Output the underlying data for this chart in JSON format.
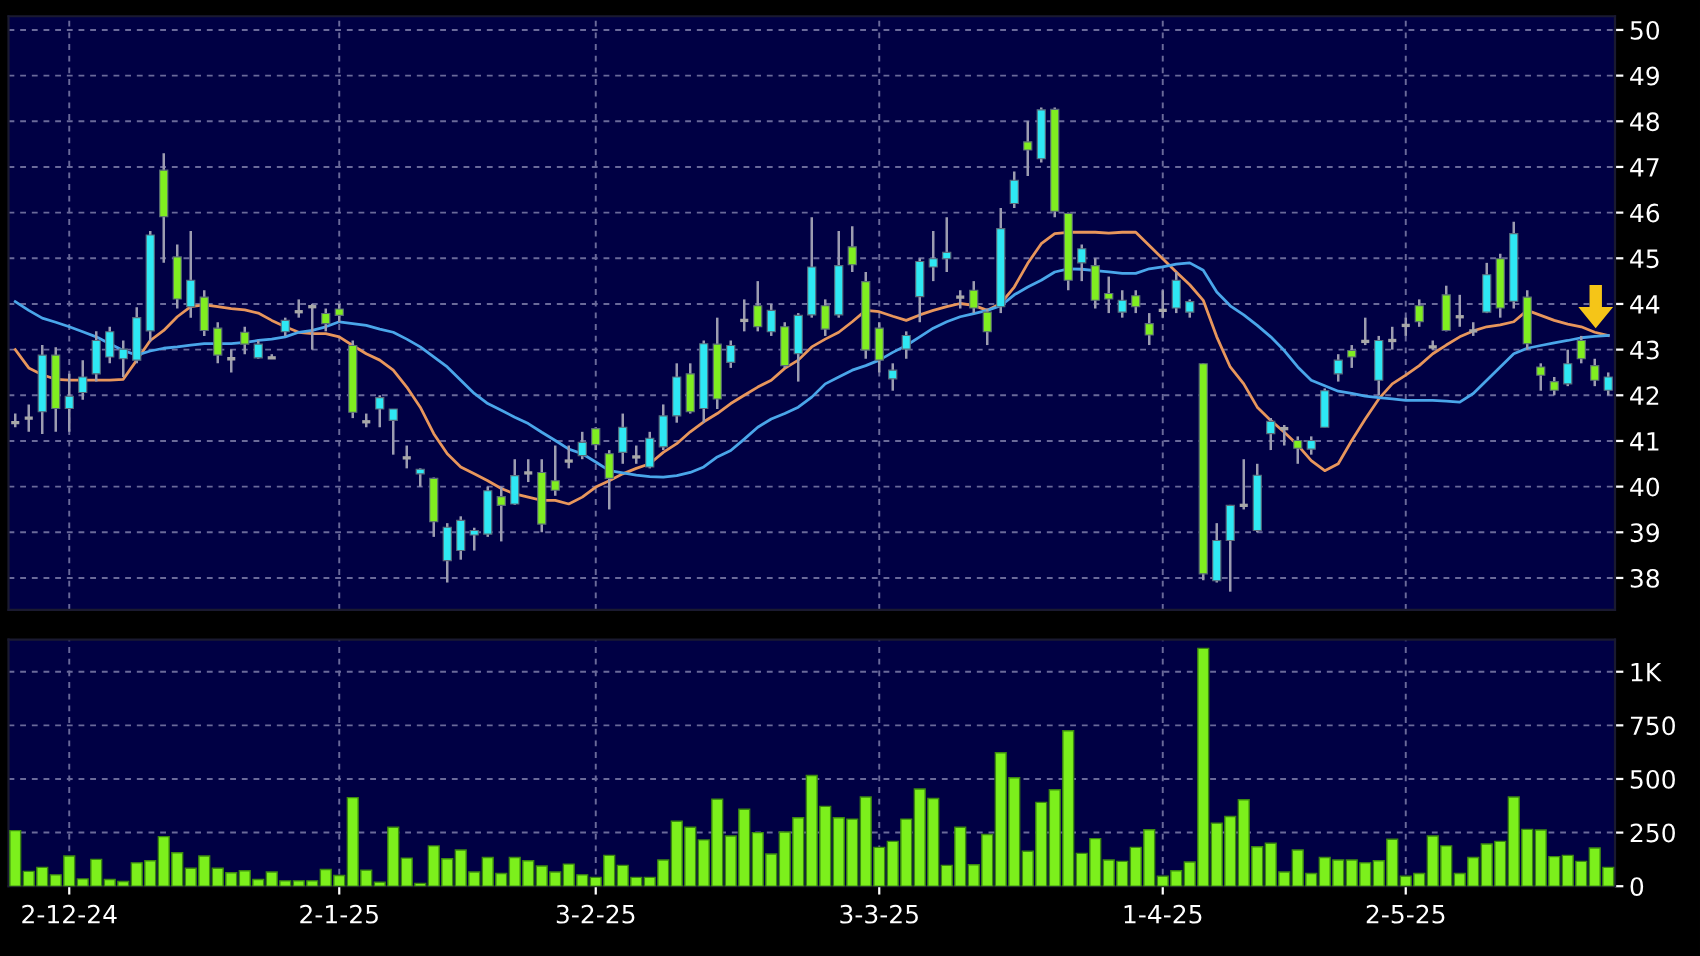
{
  "chart_data": [
    {
      "type": "candlestick",
      "categories": [
        null,
        null,
        null,
        null,
        null,
        null,
        null,
        null,
        null,
        null,
        null,
        null,
        null,
        null,
        null,
        null,
        null,
        null,
        null,
        null,
        null,
        null,
        null,
        null,
        null,
        null,
        null,
        null,
        null,
        null,
        null,
        null,
        null,
        null,
        null,
        null,
        null,
        null,
        null,
        null,
        null,
        null,
        null,
        null,
        null,
        null,
        null,
        null,
        null,
        null,
        null,
        null,
        null,
        null,
        null,
        null,
        null,
        null,
        null,
        null,
        null,
        null,
        null,
        null,
        null,
        null,
        null,
        null,
        null,
        null,
        null,
        null,
        null,
        null,
        null,
        null,
        null,
        null,
        null,
        null,
        null,
        null,
        null,
        null,
        null,
        null,
        null,
        null,
        null,
        null,
        null,
        null,
        null,
        null,
        null,
        null,
        null,
        null,
        null,
        null,
        null,
        null,
        null,
        null,
        null,
        null,
        null,
        null,
        null,
        null,
        null,
        null,
        null,
        null,
        null,
        null,
        null,
        null,
        null
      ],
      "ohlc": [
        [
          41.4,
          41.6,
          41.3,
          41.4
        ],
        [
          41.5,
          41.8,
          41.2,
          41.5
        ],
        [
          41.64,
          43.1,
          41.15,
          42.88
        ],
        [
          42.88,
          43.05,
          41.2,
          41.71
        ],
        [
          41.71,
          42.47,
          41.2,
          41.98
        ],
        [
          42.06,
          42.77,
          41.9,
          42.4
        ],
        [
          42.47,
          43.4,
          42.3,
          43.2
        ],
        [
          42.84,
          43.5,
          42.7,
          43.39
        ],
        [
          42.8,
          43.2,
          42.4,
          43.01
        ],
        [
          42.77,
          43.93,
          42.7,
          43.7
        ],
        [
          43.41,
          45.6,
          43.18,
          45.51
        ],
        [
          46.93,
          47.3,
          44.9,
          45.91
        ],
        [
          45.03,
          45.3,
          43.9,
          44.11
        ],
        [
          43.94,
          45.6,
          43.7,
          44.52
        ],
        [
          44.15,
          44.3,
          43.3,
          43.42
        ],
        [
          43.47,
          43.6,
          42.7,
          42.88
        ],
        [
          42.8,
          43.0,
          42.5,
          42.8
        ],
        [
          43.38,
          43.5,
          42.9,
          43.12
        ],
        [
          42.82,
          43.2,
          42.8,
          43.12
        ],
        [
          42.82,
          42.9,
          42.8,
          42.82
        ],
        [
          43.39,
          43.7,
          43.3,
          43.64
        ],
        [
          43.83,
          44.1,
          43.7,
          43.83
        ],
        [
          43.94,
          44.0,
          43.0,
          43.94
        ],
        [
          43.79,
          43.9,
          43.4,
          43.57
        ],
        [
          43.89,
          44.0,
          43.6,
          43.75
        ],
        [
          43.09,
          43.2,
          41.5,
          41.63
        ],
        [
          41.42,
          41.6,
          41.3,
          41.42
        ],
        [
          41.7,
          42.0,
          41.3,
          41.95
        ],
        [
          41.45,
          41.7,
          40.7,
          41.7
        ],
        [
          40.63,
          40.9,
          40.4,
          40.63
        ],
        [
          40.28,
          40.4,
          40.0,
          40.38
        ],
        [
          40.18,
          40.2,
          38.9,
          39.23
        ],
        [
          38.38,
          39.2,
          37.9,
          39.11
        ],
        [
          38.6,
          39.35,
          38.4,
          39.26
        ],
        [
          38.94,
          39.1,
          38.6,
          39.04
        ],
        [
          38.96,
          40.0,
          38.9,
          39.91
        ],
        [
          39.78,
          40.0,
          38.8,
          39.59
        ],
        [
          39.62,
          40.6,
          39.6,
          40.24
        ],
        [
          40.3,
          40.6,
          40.1,
          40.3
        ],
        [
          40.31,
          40.6,
          39.0,
          39.18
        ],
        [
          40.13,
          40.9,
          39.8,
          39.92
        ],
        [
          40.56,
          40.9,
          40.4,
          40.56
        ],
        [
          40.68,
          41.2,
          40.6,
          40.97
        ],
        [
          41.27,
          41.3,
          40.8,
          40.92
        ],
        [
          40.72,
          40.8,
          39.5,
          40.18
        ],
        [
          40.75,
          41.6,
          40.5,
          41.3
        ],
        [
          40.65,
          40.9,
          40.5,
          40.65
        ],
        [
          40.43,
          41.2,
          40.4,
          41.06
        ],
        [
          40.87,
          41.8,
          40.8,
          41.55
        ],
        [
          41.55,
          42.7,
          41.4,
          42.4
        ],
        [
          42.47,
          42.7,
          41.6,
          41.64
        ],
        [
          41.71,
          43.2,
          41.4,
          43.13
        ],
        [
          43.12,
          43.7,
          41.7,
          41.92
        ],
        [
          42.72,
          43.2,
          42.6,
          43.09
        ],
        [
          43.64,
          44.1,
          43.4,
          43.64
        ],
        [
          43.96,
          44.5,
          43.4,
          43.5
        ],
        [
          43.39,
          44.0,
          43.3,
          43.86
        ],
        [
          43.5,
          43.6,
          42.6,
          42.65
        ],
        [
          42.91,
          43.8,
          42.3,
          43.75
        ],
        [
          43.76,
          45.9,
          43.7,
          44.81
        ],
        [
          43.96,
          44.1,
          43.3,
          43.45
        ],
        [
          43.76,
          45.6,
          43.7,
          44.84
        ],
        [
          45.25,
          45.7,
          44.7,
          44.86
        ],
        [
          44.49,
          44.7,
          42.8,
          42.99
        ],
        [
          43.47,
          43.6,
          42.5,
          42.77
        ],
        [
          42.36,
          42.7,
          42.1,
          42.55
        ],
        [
          43.01,
          43.4,
          42.8,
          43.31
        ],
        [
          44.16,
          45.0,
          43.6,
          44.93
        ],
        [
          44.81,
          45.6,
          44.5,
          44.99
        ],
        [
          44.99,
          45.9,
          44.7,
          45.13
        ],
        [
          44.15,
          44.3,
          43.9,
          44.15
        ],
        [
          44.3,
          44.5,
          43.8,
          43.91
        ],
        [
          43.82,
          43.9,
          43.1,
          43.39
        ],
        [
          43.94,
          46.1,
          43.8,
          45.65
        ],
        [
          46.2,
          46.9,
          46.1,
          46.71
        ],
        [
          47.55,
          48.0,
          46.8,
          47.37
        ],
        [
          47.18,
          48.3,
          47.1,
          48.25
        ],
        [
          48.26,
          48.3,
          45.9,
          46.03
        ],
        [
          45.98,
          46.0,
          44.3,
          44.52
        ],
        [
          44.9,
          45.3,
          44.5,
          45.21
        ],
        [
          44.84,
          45.0,
          43.9,
          44.08
        ],
        [
          44.23,
          44.6,
          43.8,
          44.11
        ],
        [
          43.82,
          44.3,
          43.7,
          44.08
        ],
        [
          44.18,
          44.3,
          43.8,
          43.94
        ],
        [
          43.57,
          43.8,
          43.1,
          43.32
        ],
        [
          43.86,
          44.3,
          43.7,
          43.86
        ],
        [
          43.91,
          44.7,
          43.8,
          44.52
        ],
        [
          43.82,
          44.1,
          43.7,
          44.05
        ],
        [
          42.69,
          42.7,
          37.95,
          38.09
        ],
        [
          37.94,
          39.2,
          37.9,
          38.82
        ],
        [
          38.82,
          39.6,
          37.7,
          39.59
        ],
        [
          39.59,
          40.6,
          39.5,
          39.59
        ],
        [
          39.04,
          40.5,
          39.0,
          40.25
        ],
        [
          41.16,
          41.5,
          40.8,
          41.43
        ],
        [
          41.27,
          41.35,
          40.9,
          41.27
        ],
        [
          41.01,
          41.1,
          40.5,
          40.84
        ],
        [
          40.82,
          41.1,
          40.7,
          41.01
        ],
        [
          41.3,
          42.15,
          41.3,
          42.1
        ],
        [
          42.47,
          42.9,
          42.3,
          42.77
        ],
        [
          42.98,
          43.1,
          42.6,
          42.84
        ],
        [
          43.18,
          43.7,
          43.1,
          43.18
        ],
        [
          42.33,
          43.3,
          42.0,
          43.2
        ],
        [
          43.2,
          43.5,
          43.0,
          43.2
        ],
        [
          43.53,
          43.7,
          43.3,
          43.53
        ],
        [
          43.96,
          44.1,
          43.5,
          43.61
        ],
        [
          43.06,
          43.2,
          43.0,
          43.06
        ],
        [
          44.2,
          44.4,
          43.4,
          43.42
        ],
        [
          43.72,
          44.2,
          43.5,
          43.72
        ],
        [
          43.41,
          43.6,
          43.3,
          43.41
        ],
        [
          43.82,
          44.9,
          43.8,
          44.64
        ],
        [
          44.99,
          45.1,
          43.7,
          43.91
        ],
        [
          44.06,
          45.8,
          43.9,
          45.54
        ],
        [
          44.15,
          44.3,
          43.0,
          43.13
        ],
        [
          42.62,
          42.7,
          42.1,
          42.44
        ],
        [
          42.3,
          42.4,
          42.0,
          42.11
        ],
        [
          42.25,
          43.0,
          42.2,
          42.69
        ],
        [
          43.2,
          43.3,
          42.7,
          42.8
        ],
        [
          42.65,
          42.8,
          42.2,
          42.33
        ],
        [
          42.11,
          42.5,
          42.0,
          42.4
        ]
      ],
      "colors": [
        "#a8a8a8",
        "#a8a8a8",
        "#2ee8f4",
        "#80ee20",
        "#2ee8f4",
        "#2ee8f4",
        "#2ee8f4",
        "#2ee8f4",
        "#2ee8f4",
        "#2ee8f4",
        "#2ee8f4",
        "#80ee20",
        "#80ee20",
        "#2ee8f4",
        "#80ee20",
        "#80ee20",
        "#a8a8a8",
        "#80ee20",
        "#2ee8f4",
        "#a8a8a8",
        "#2ee8f4",
        "#a8a8a8",
        "#a8a8a8",
        "#80ee20",
        "#80ee20",
        "#80ee20",
        "#a8a8a8",
        "#2ee8f4",
        "#2ee8f4",
        "#a8a8a8",
        "#2ee8f4",
        "#80ee20",
        "#2ee8f4",
        "#2ee8f4",
        "#2ee8f4",
        "#2ee8f4",
        "#80ee20",
        "#2ee8f4",
        "#a8a8a8",
        "#80ee20",
        "#80ee20",
        "#a8a8a8",
        "#2ee8f4",
        "#80ee20",
        "#80ee20",
        "#2ee8f4",
        "#a8a8a8",
        "#2ee8f4",
        "#2ee8f4",
        "#2ee8f4",
        "#80ee20",
        "#2ee8f4",
        "#80ee20",
        "#2ee8f4",
        "#a8a8a8",
        "#80ee20",
        "#2ee8f4",
        "#80ee20",
        "#2ee8f4",
        "#2ee8f4",
        "#80ee20",
        "#2ee8f4",
        "#80ee20",
        "#80ee20",
        "#80ee20",
        "#2ee8f4",
        "#2ee8f4",
        "#2ee8f4",
        "#2ee8f4",
        "#2ee8f4",
        "#a8a8a8",
        "#80ee20",
        "#80ee20",
        "#2ee8f4",
        "#2ee8f4",
        "#80ee20",
        "#2ee8f4",
        "#80ee20",
        "#80ee20",
        "#2ee8f4",
        "#80ee20",
        "#80ee20",
        "#2ee8f4",
        "#80ee20",
        "#80ee20",
        "#a8a8a8",
        "#2ee8f4",
        "#2ee8f4",
        "#80ee20",
        "#2ee8f4",
        "#2ee8f4",
        "#a8a8a8",
        "#2ee8f4",
        "#2ee8f4",
        "#a8a8a8",
        "#80ee20",
        "#2ee8f4",
        "#2ee8f4",
        "#2ee8f4",
        "#80ee20",
        "#a8a8a8",
        "#2ee8f4",
        "#a8a8a8",
        "#a8a8a8",
        "#80ee20",
        "#a8a8a8",
        "#80ee20",
        "#a8a8a8",
        "#a8a8a8",
        "#2ee8f4",
        "#80ee20",
        "#2ee8f4",
        "#80ee20",
        "#80ee20",
        "#80ee20",
        "#2ee8f4",
        "#80ee20",
        "#80ee20",
        "#2ee8f4"
      ],
      "series": [
        {
          "type": "line",
          "color": "#e8965c",
          "values": [
            43.0,
            42.6,
            42.45,
            42.35,
            42.33,
            42.33,
            42.33,
            42.33,
            42.35,
            42.77,
            43.2,
            43.42,
            43.72,
            43.94,
            43.98,
            43.94,
            43.9,
            43.87,
            43.8,
            43.64,
            43.5,
            43.38,
            43.35,
            43.35,
            43.28,
            43.09,
            42.91,
            42.77,
            42.55,
            42.18,
            41.74,
            41.16,
            40.72,
            40.43,
            40.28,
            40.13,
            39.96,
            39.84,
            39.77,
            39.7,
            39.7,
            39.62,
            39.77,
            39.99,
            40.13,
            40.28,
            40.4,
            40.5,
            40.75,
            40.94,
            41.2,
            41.42,
            41.6,
            41.82,
            42.0,
            42.18,
            42.33,
            42.59,
            42.77,
            43.06,
            43.23,
            43.38,
            43.61,
            43.86,
            43.83,
            43.73,
            43.64,
            43.76,
            43.86,
            43.94,
            44.01,
            43.97,
            43.86,
            44.01,
            44.37,
            44.89,
            45.32,
            45.54,
            45.57,
            45.57,
            45.57,
            45.55,
            45.57,
            45.57,
            45.28,
            44.99,
            44.7,
            44.42,
            44.08,
            43.28,
            42.62,
            42.25,
            41.74,
            41.45,
            41.19,
            40.91,
            40.57,
            40.35,
            40.5,
            41.01,
            41.48,
            41.92,
            42.25,
            42.44,
            42.65,
            42.91,
            43.1,
            43.28,
            43.41,
            43.5,
            43.54,
            43.61,
            43.86,
            43.75,
            43.64,
            43.56,
            43.5,
            43.38,
            43.31
          ]
        },
        {
          "type": "line",
          "color": "#4aa6ea",
          "values": [
            44.05,
            43.86,
            43.69,
            43.6,
            43.5,
            43.39,
            43.28,
            43.13,
            42.98,
            42.88,
            42.97,
            43.03,
            43.06,
            43.1,
            43.13,
            43.13,
            43.13,
            43.16,
            43.2,
            43.23,
            43.28,
            43.38,
            43.42,
            43.5,
            43.61,
            43.57,
            43.53,
            43.45,
            43.38,
            43.23,
            43.06,
            42.84,
            42.62,
            42.33,
            42.04,
            41.82,
            41.67,
            41.52,
            41.38,
            41.19,
            41.01,
            40.82,
            40.72,
            40.54,
            40.35,
            40.3,
            40.25,
            40.22,
            40.21,
            40.24,
            40.31,
            40.43,
            40.65,
            40.79,
            41.04,
            41.3,
            41.48,
            41.6,
            41.74,
            41.96,
            42.25,
            42.4,
            42.55,
            42.65,
            42.77,
            42.94,
            43.09,
            43.28,
            43.47,
            43.61,
            43.72,
            43.79,
            43.86,
            43.96,
            44.2,
            44.37,
            44.52,
            44.7,
            44.77,
            44.76,
            44.73,
            44.7,
            44.67,
            44.67,
            44.77,
            44.81,
            44.87,
            44.9,
            44.74,
            44.26,
            43.96,
            43.76,
            43.53,
            43.28,
            42.98,
            42.62,
            42.33,
            42.21,
            42.09,
            42.04,
            41.98,
            41.95,
            41.92,
            41.89,
            41.89,
            41.89,
            41.87,
            41.85,
            42.04,
            42.33,
            42.62,
            42.91,
            43.03,
            43.09,
            43.15,
            43.2,
            43.26,
            43.29,
            43.31
          ]
        }
      ],
      "ylim": [
        37.3,
        50.3
      ],
      "yticks": [
        38,
        39,
        40,
        41,
        42,
        43,
        44,
        45,
        46,
        47,
        48,
        49,
        50
      ],
      "grid": true,
      "tick_labels": "y"
    },
    {
      "type": "bar",
      "categories": [
        null,
        null,
        null,
        null,
        "2-12-24",
        null,
        null,
        null,
        null,
        null,
        null,
        null,
        null,
        null,
        null,
        null,
        null,
        null,
        null,
        null,
        null,
        null,
        null,
        null,
        "2-1-25",
        null,
        null,
        null,
        null,
        null,
        null,
        null,
        null,
        null,
        null,
        null,
        null,
        null,
        null,
        null,
        null,
        null,
        null,
        "3-2-25",
        null,
        null,
        null,
        null,
        null,
        null,
        null,
        null,
        null,
        null,
        null,
        null,
        null,
        null,
        null,
        null,
        null,
        null,
        null,
        null,
        "3-3-25",
        null,
        null,
        null,
        null,
        null,
        null,
        null,
        null,
        null,
        null,
        null,
        null,
        null,
        null,
        null,
        null,
        null,
        null,
        null,
        null,
        "1-4-25",
        null,
        null,
        null,
        null,
        null,
        null,
        null,
        null,
        null,
        null,
        null,
        null,
        null,
        null,
        null,
        null,
        null,
        "2-5-25",
        null,
        null,
        null,
        null,
        null,
        null,
        null,
        null,
        null,
        null,
        null,
        null,
        null,
        null,
        null
      ],
      "values": [
        259,
        69,
        88,
        53,
        141,
        34,
        125,
        31,
        22,
        109,
        119,
        231,
        156,
        84,
        141,
        84,
        63,
        72,
        31,
        66,
        25,
        25,
        25,
        78,
        50,
        413,
        75,
        19,
        275,
        131,
        13,
        188,
        128,
        169,
        66,
        134,
        59,
        134,
        119,
        94,
        66,
        103,
        53,
        41,
        144,
        97,
        41,
        41,
        122,
        303,
        275,
        216,
        406,
        234,
        359,
        250,
        150,
        253,
        319,
        516,
        372,
        319,
        313,
        416,
        181,
        209,
        313,
        453,
        409,
        97,
        275,
        100,
        241,
        622,
        506,
        163,
        391,
        450,
        725,
        153,
        222,
        122,
        116,
        181,
        263,
        47,
        72,
        113,
        1109,
        294,
        325,
        403,
        184,
        200,
        66,
        169,
        59,
        134,
        122,
        122,
        109,
        119,
        219,
        47,
        59,
        234,
        188,
        59,
        134,
        197,
        209,
        416,
        265,
        262,
        138,
        144,
        116,
        178,
        88
      ],
      "color": "#7cf01c",
      "ylim": [
        0,
        1150
      ],
      "yticks": [
        0,
        250,
        500,
        750,
        {
          "value": 1000,
          "label": "1K"
        }
      ],
      "grid": true
    }
  ]
}
